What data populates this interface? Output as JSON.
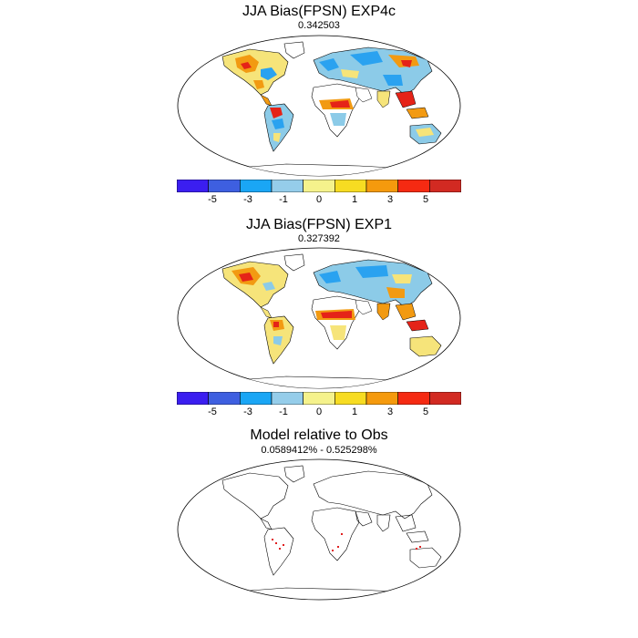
{
  "panels": [
    {
      "title": "JJA Bias(FPSN) EXP4c",
      "subtitle": "0.342503"
    },
    {
      "title": "JJA Bias(FPSN) EXP1",
      "subtitle": "0.327392"
    },
    {
      "title": "Model relative to Obs",
      "subtitle": "0.0589412% - 0.525298%"
    }
  ],
  "colorbar": {
    "colors": [
      "#3b1ef0",
      "#3e5fe0",
      "#1aa6f5",
      "#95cdea",
      "#f5f28c",
      "#f7dc22",
      "#f59a0d",
      "#f52a12",
      "#d22a22"
    ],
    "tick_labels": [
      "-5",
      "-3",
      "-1",
      "0",
      "1",
      "3",
      "5"
    ]
  },
  "colors": {
    "land_outline": "#000000",
    "positive_high": "#e52318",
    "positive_mid": "#f29a12",
    "positive_low": "#f6e47a",
    "negative_low": "#8ccbe8",
    "negative_mid": "#2aa2f0",
    "marker_red": "#e02020"
  }
}
